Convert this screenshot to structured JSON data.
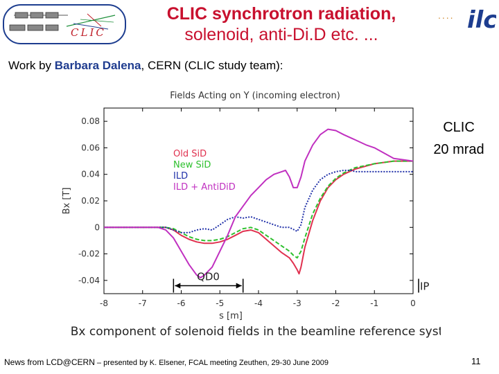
{
  "header": {
    "title_line1": "CLIC synchrotron radiation,",
    "title_line2": "solenoid, anti-Di.D etc. ...",
    "logo_left_text": "CLIC",
    "logo_right_text": "ilc",
    "logo_dots": "....",
    "brand_color": "#c8102e"
  },
  "credit": {
    "prefix": "Work by ",
    "author": "Barbara Dalena",
    "suffix": ", CERN (CLIC study team):"
  },
  "side_label": {
    "line1": "CLIC",
    "line2": "20 mrad"
  },
  "footer": {
    "text_main": "News from LCD@CERN",
    "text_rest": " – presented by K. Elsener, FCAL meeting Zeuthen, 29-30 June 2009",
    "page_number": "11"
  },
  "chart_data": {
    "type": "line",
    "title": "Fields Acting on Y (incoming electron)",
    "xlabel": "s [m]",
    "ylabel": "Bx [T]",
    "caption": "Bx component of solenoid fields in the beamline reference system",
    "xlim": [
      -8,
      0
    ],
    "ylim": [
      -0.05,
      0.09
    ],
    "x_ticks": [
      "-8",
      "-7",
      "-6",
      "-5",
      "-4",
      "-3",
      "-2",
      "-1",
      "0"
    ],
    "y_ticks": [
      "0.08",
      "0.06",
      "0.04",
      "0.02",
      "0",
      "-0.02",
      "-0.04"
    ],
    "grid": false,
    "legend_position": "upper-left",
    "annotations": {
      "qd0_label": "QD0",
      "qd0_range": [
        -6.2,
        -4.4
      ],
      "ip_label": "IP"
    },
    "series": [
      {
        "name": "Old SiD",
        "color": "#e0314f",
        "style": "solid",
        "x": [
          -8,
          -6.4,
          -6.2,
          -6.0,
          -5.8,
          -5.6,
          -5.4,
          -5.2,
          -5.0,
          -4.8,
          -4.6,
          -4.4,
          -4.2,
          -4.0,
          -3.8,
          -3.6,
          -3.4,
          -3.2,
          -3.1,
          -3.0,
          -2.95,
          -2.9,
          -2.8,
          -2.6,
          -2.4,
          -2.2,
          -2.0,
          -1.8,
          -1.5,
          -1.0,
          -0.5,
          0
        ],
        "y": [
          0.0,
          0.0,
          -0.002,
          -0.006,
          -0.009,
          -0.011,
          -0.012,
          -0.012,
          -0.011,
          -0.009,
          -0.006,
          -0.003,
          -0.002,
          -0.004,
          -0.009,
          -0.014,
          -0.019,
          -0.023,
          -0.027,
          -0.032,
          -0.035,
          -0.03,
          -0.015,
          0.005,
          0.02,
          0.03,
          0.036,
          0.04,
          0.044,
          0.048,
          0.05,
          0.05
        ]
      },
      {
        "name": "New SiD",
        "color": "#2ec02e",
        "style": "dashed",
        "x": [
          -8,
          -6.4,
          -6.2,
          -6.0,
          -5.8,
          -5.6,
          -5.4,
          -5.2,
          -5.0,
          -4.8,
          -4.6,
          -4.4,
          -4.2,
          -4.0,
          -3.8,
          -3.6,
          -3.4,
          -3.2,
          -3.1,
          -3.0,
          -2.9,
          -2.8,
          -2.6,
          -2.4,
          -2.2,
          -2.0,
          -1.8,
          -1.5,
          -1.0,
          -0.5,
          0
        ],
        "y": [
          0.0,
          0.0,
          -0.001,
          -0.004,
          -0.007,
          -0.009,
          -0.01,
          -0.01,
          -0.009,
          -0.007,
          -0.004,
          -0.001,
          0.0,
          -0.002,
          -0.006,
          -0.01,
          -0.014,
          -0.018,
          -0.021,
          -0.023,
          -0.018,
          -0.008,
          0.01,
          0.022,
          0.031,
          0.037,
          0.041,
          0.045,
          0.048,
          0.05,
          0.05
        ]
      },
      {
        "name": "ILD",
        "color": "#1f2fa8",
        "style": "dotted",
        "x": [
          -8,
          -6.4,
          -6.2,
          -6.0,
          -5.8,
          -5.6,
          -5.4,
          -5.2,
          -5.0,
          -4.8,
          -4.6,
          -4.4,
          -4.2,
          -4.0,
          -3.8,
          -3.6,
          -3.4,
          -3.2,
          -3.0,
          -2.9,
          -2.8,
          -2.6,
          -2.4,
          -2.2,
          -2.0,
          -1.8,
          -1.6,
          -1.5,
          -1.0,
          -0.5,
          0
        ],
        "y": [
          0.0,
          0.0,
          -0.002,
          -0.004,
          -0.004,
          -0.002,
          -0.001,
          -0.002,
          0.002,
          0.006,
          0.008,
          0.007,
          0.008,
          0.006,
          0.004,
          0.002,
          0.0,
          0.0,
          -0.003,
          0.002,
          0.015,
          0.028,
          0.036,
          0.04,
          0.042,
          0.043,
          0.043,
          0.042,
          0.042,
          0.042,
          0.042
        ]
      },
      {
        "name": "ILD + AntiDiD",
        "color": "#c030c0",
        "style": "solid",
        "x": [
          -8,
          -6.6,
          -6.4,
          -6.2,
          -6.0,
          -5.8,
          -5.6,
          -5.5,
          -5.4,
          -5.2,
          -5.0,
          -4.8,
          -4.6,
          -4.4,
          -4.2,
          -4.0,
          -3.8,
          -3.6,
          -3.4,
          -3.3,
          -3.2,
          -3.1,
          -3.0,
          -2.9,
          -2.8,
          -2.6,
          -2.4,
          -2.2,
          -2.0,
          -1.8,
          -1.5,
          -1.2,
          -1.0,
          -0.5,
          0
        ],
        "y": [
          0.0,
          0.0,
          -0.002,
          -0.008,
          -0.018,
          -0.028,
          -0.036,
          -0.038,
          -0.036,
          -0.03,
          -0.018,
          -0.006,
          0.008,
          0.016,
          0.024,
          0.03,
          0.036,
          0.04,
          0.042,
          0.043,
          0.038,
          0.03,
          0.03,
          0.038,
          0.05,
          0.062,
          0.07,
          0.074,
          0.073,
          0.07,
          0.066,
          0.062,
          0.06,
          0.052,
          0.05
        ]
      }
    ]
  }
}
